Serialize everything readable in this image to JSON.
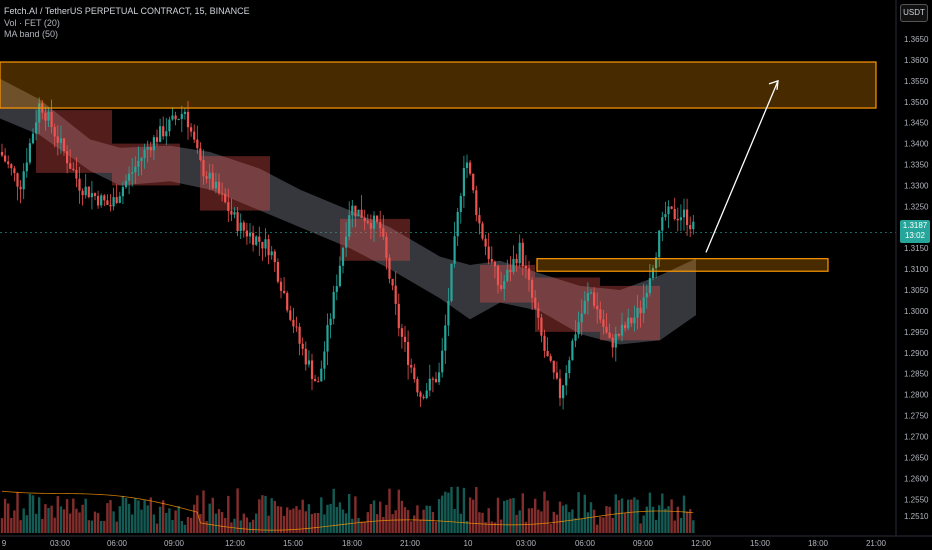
{
  "header": {
    "title": "Fetch.AI / TetherUS PERPETUAL CONTRACT, 15, BINANCE",
    "vol_label": "Vol · FET (20)",
    "ma_band_label": "MA band (50)"
  },
  "currency_button": "USDT",
  "last_price": {
    "price": "1.3187",
    "countdown": "13:02"
  },
  "price_axis": [
    "1.3650",
    "1.3600",
    "1.3550",
    "1.3500",
    "1.3450",
    "1.3400",
    "1.3350",
    "1.3300",
    "1.3250",
    "1.3200",
    "1.3150",
    "1.3100",
    "1.3050",
    "1.3000",
    "1.2950",
    "1.2900",
    "1.2850",
    "1.2800",
    "1.2750",
    "1.2700",
    "1.2650",
    "1.2600",
    "1.2550",
    "1.2510"
  ],
  "time_axis": [
    "9",
    "03:00",
    "06:00",
    "09:00",
    "12:00",
    "15:00",
    "18:00",
    "21:00",
    "10",
    "03:00",
    "06:00",
    "09:00",
    "12:00",
    "15:00",
    "18:00",
    "21:00"
  ],
  "colors": {
    "up": "#26a69a",
    "down": "#ef5350",
    "zone": "#ff9800",
    "band_grey": "#787b86",
    "band_red": "#ef5350",
    "vol_ma": "#ff9800"
  },
  "chart_data": {
    "type": "candlestick",
    "symbol": "FETUSDT",
    "interval": "15",
    "y_range": [
      1.251,
      1.367
    ],
    "zones": [
      {
        "low": 1.3485,
        "high": 1.3595
      },
      {
        "low": 1.3095,
        "high": 1.3125
      }
    ],
    "projection_arrow": {
      "from": 1.314,
      "to": 1.355
    }
  }
}
